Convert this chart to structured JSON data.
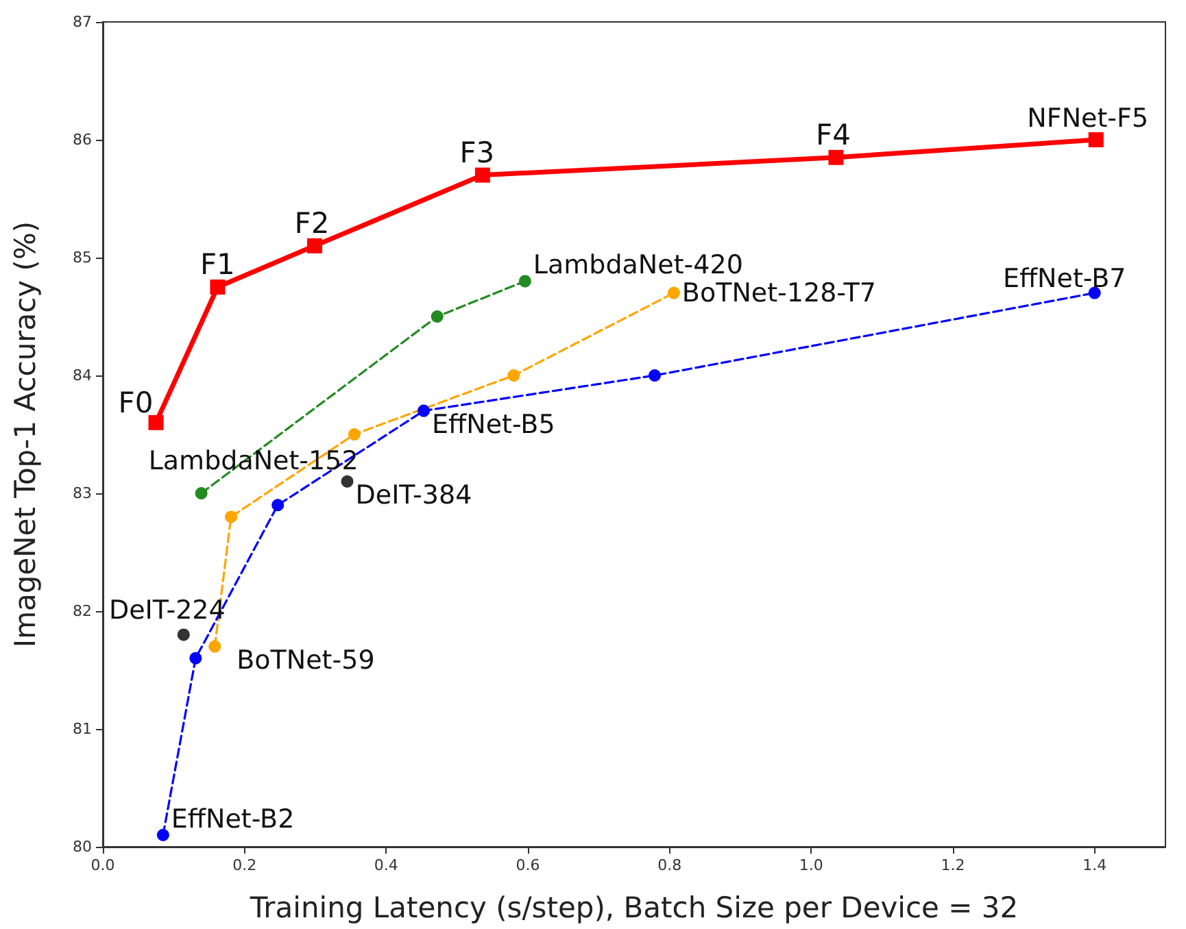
{
  "chart_data": {
    "type": "line",
    "xlabel": "Training Latency (s/step), Batch Size per Device = 32",
    "ylabel": "ImageNet Top-1 Accuracy (%)",
    "xlim": [
      0,
      1.5
    ],
    "ylim": [
      80,
      87
    ],
    "xticks": [
      {
        "value": 0,
        "label": "0.0"
      },
      {
        "value": 0.2,
        "label": "0.2"
      },
      {
        "value": 0.4,
        "label": "0.4"
      },
      {
        "value": 0.6,
        "label": "0.6"
      },
      {
        "value": 0.8,
        "label": "0.8"
      },
      {
        "value": 1,
        "label": "1.0"
      },
      {
        "value": 1.2,
        "label": "1.2"
      },
      {
        "value": 1.4,
        "label": "1.4"
      }
    ],
    "yticks": [
      80,
      81,
      82,
      83,
      84,
      85,
      86,
      87
    ],
    "grid": false,
    "series": [
      {
        "type": "line",
        "color": "#ff0000",
        "marker": "square",
        "line_style": "solid",
        "x": [
          0.075,
          0.162,
          0.299,
          0.536,
          1.035,
          1.402
        ],
        "values": [
          83.6,
          84.75,
          85.1,
          85.7,
          85.85,
          86.0
        ]
      },
      {
        "type": "line",
        "color": "#228b22",
        "marker": "circle",
        "line_style": "dashed",
        "x": [
          0.139,
          0.472,
          0.596
        ],
        "values": [
          83.0,
          84.5,
          84.8
        ]
      },
      {
        "type": "line",
        "color": "#ffa500",
        "marker": "circle",
        "line_style": "dashed",
        "x": [
          0.158,
          0.181,
          0.355,
          0.58,
          0.806
        ],
        "values": [
          81.7,
          82.8,
          83.5,
          84.0,
          84.7
        ]
      },
      {
        "type": "line",
        "color": "#0000ff",
        "marker": "circle",
        "line_style": "dashed",
        "x": [
          0.085,
          0.131,
          0.247,
          0.453,
          0.779,
          1.4
        ],
        "values": [
          80.1,
          81.6,
          82.9,
          83.7,
          84.0,
          84.7
        ]
      },
      {
        "type": "scatter",
        "color": "#000000",
        "marker": "circle",
        "x": [
          0.114,
          0.345
        ],
        "values": [
          81.8,
          83.1
        ]
      }
    ],
    "annotations": [
      {
        "text": "F0",
        "x": 0.075,
        "y": 83.6
      },
      {
        "text": "F1",
        "x": 0.162,
        "y": 84.75
      },
      {
        "text": "F2",
        "x": 0.299,
        "y": 85.1
      },
      {
        "text": "F3",
        "x": 0.536,
        "y": 85.7
      },
      {
        "text": "F4",
        "x": 1.035,
        "y": 85.85
      },
      {
        "text": "NFNet-F5",
        "x": 1.402,
        "y": 86.0
      },
      {
        "text": "LambdaNet-420",
        "x": 0.596,
        "y": 84.8
      },
      {
        "text": "LambdaNet-152",
        "x": 0.139,
        "y": 83.0
      },
      {
        "text": "BoTNet-128-T7",
        "x": 0.806,
        "y": 84.7
      },
      {
        "text": "BoTNet-59",
        "x": 0.158,
        "y": 81.7
      },
      {
        "text": "EffNet-B7",
        "x": 1.4,
        "y": 84.7
      },
      {
        "text": "EffNet-B5",
        "x": 0.453,
        "y": 83.7
      },
      {
        "text": "EffNet-B2",
        "x": 0.085,
        "y": 80.1
      },
      {
        "text": "DeIT-224",
        "x": 0.114,
        "y": 81.8
      },
      {
        "text": "DeIT-384",
        "x": 0.345,
        "y": 83.1
      }
    ]
  }
}
